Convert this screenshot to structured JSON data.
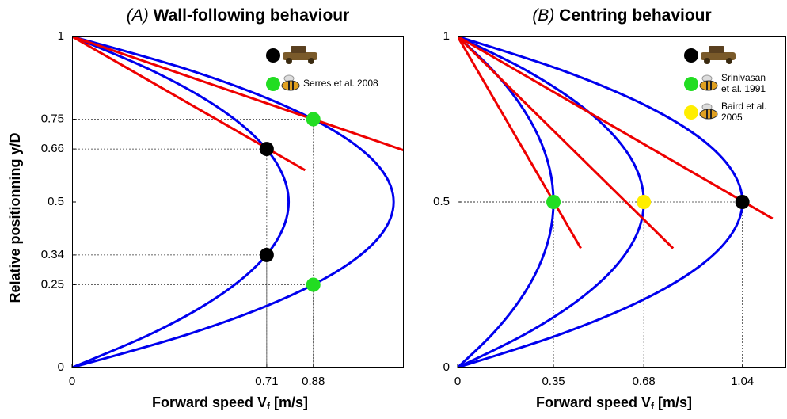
{
  "chart_data": [
    {
      "type": "line",
      "label": "(A)",
      "title": "Wall-following behaviour",
      "xlabel": {
        "text": "Forward speed V",
        "sub": "f",
        "after": " [m/s]"
      },
      "ylabel": "Relative positionning y/D",
      "xlim": [
        0,
        1.21
      ],
      "ylim": [
        0,
        1
      ],
      "xticks": [
        0,
        0.71,
        0.88
      ],
      "yticks": [
        0,
        0.25,
        0.34,
        0.5,
        0.66,
        0.75,
        1
      ],
      "series": [
        {
          "color": "#0000ee",
          "y": [
            0,
            0.1,
            0.2,
            0.3,
            0.4,
            0.5,
            0.6,
            0.7,
            0.8,
            0.9,
            1
          ],
          "x": [
            0,
            0.284,
            0.506,
            0.664,
            0.758,
            0.79,
            0.758,
            0.664,
            0.506,
            0.284,
            0
          ]
        },
        {
          "color": "#0000ee",
          "y": [
            0,
            0.1,
            0.2,
            0.3,
            0.4,
            0.5,
            0.6,
            0.7,
            0.8,
            0.9,
            1
          ],
          "x": [
            0,
            0.422,
            0.75,
            0.985,
            1.126,
            1.173,
            1.126,
            0.985,
            0.75,
            0.422,
            0
          ]
        },
        {
          "color": "#ee0000",
          "x": [
            0,
            0.85
          ],
          "y": [
            1,
            0.596
          ]
        },
        {
          "color": "#ee0000",
          "x": [
            0,
            1.21
          ],
          "y": [
            1,
            0.656
          ]
        }
      ],
      "points": [
        {
          "x": 0.71,
          "y": 0.66,
          "color": "#000000"
        },
        {
          "x": 0.71,
          "y": 0.34,
          "color": "#000000"
        },
        {
          "x": 0.88,
          "y": 0.75,
          "color": "#22dd22"
        },
        {
          "x": 0.88,
          "y": 0.25,
          "color": "#22dd22"
        }
      ],
      "legend_position": "upper right",
      "legend": [
        {
          "color": "#000000",
          "icon": "robot"
        },
        {
          "color": "#22dd22",
          "icon": "bee",
          "name": [
            "Serres et al. 2008"
          ]
        }
      ]
    },
    {
      "type": "line",
      "label": "(B)",
      "title": "Centring behaviour",
      "xlabel": {
        "text": "Forward speed V",
        "sub": "f",
        "after": " [m/s]"
      },
      "xlim": [
        0,
        1.2
      ],
      "ylim": [
        0,
        1
      ],
      "xticks": [
        0,
        0.35,
        0.68,
        1.04
      ],
      "yticks": [
        0,
        0.5,
        1
      ],
      "series": [
        {
          "color": "#0000ee",
          "y": [
            0,
            0.1,
            0.2,
            0.3,
            0.4,
            0.5,
            0.6,
            0.7,
            0.8,
            0.9,
            1
          ],
          "x": [
            0,
            0.126,
            0.224,
            0.294,
            0.336,
            0.35,
            0.336,
            0.294,
            0.224,
            0.126,
            0
          ]
        },
        {
          "color": "#0000ee",
          "y": [
            0,
            0.1,
            0.2,
            0.3,
            0.4,
            0.5,
            0.6,
            0.7,
            0.8,
            0.9,
            1
          ],
          "x": [
            0,
            0.245,
            0.435,
            0.571,
            0.653,
            0.68,
            0.653,
            0.571,
            0.435,
            0.245,
            0
          ]
        },
        {
          "color": "#0000ee",
          "y": [
            0,
            0.1,
            0.2,
            0.3,
            0.4,
            0.5,
            0.6,
            0.7,
            0.8,
            0.9,
            1
          ],
          "x": [
            0,
            0.374,
            0.666,
            0.874,
            0.998,
            1.04,
            0.998,
            0.874,
            0.666,
            0.374,
            0
          ]
        },
        {
          "color": "#ee0000",
          "x": [
            0,
            0.45
          ],
          "y": [
            1,
            0.36
          ]
        },
        {
          "color": "#ee0000",
          "x": [
            0,
            0.787
          ],
          "y": [
            1,
            0.36
          ]
        },
        {
          "color": "#ee0000",
          "x": [
            0,
            1.15
          ],
          "y": [
            1,
            0.45
          ]
        }
      ],
      "points": [
        {
          "x": 0.35,
          "y": 0.5,
          "color": "#22dd22"
        },
        {
          "x": 0.68,
          "y": 0.5,
          "color": "#ffee00"
        },
        {
          "x": 1.04,
          "y": 0.5,
          "color": "#000000"
        }
      ],
      "legend_position": "upper right",
      "legend": [
        {
          "color": "#000000",
          "icon": "robot"
        },
        {
          "color": "#22dd22",
          "icon": "bee",
          "name": [
            "Srinivasan",
            "et al. 1991"
          ]
        },
        {
          "color": "#ffee00",
          "icon": "bee",
          "name": [
            "Baird et al.",
            "2005"
          ]
        }
      ]
    }
  ]
}
